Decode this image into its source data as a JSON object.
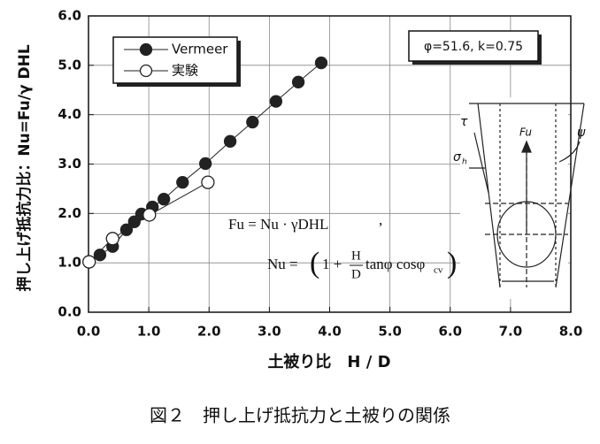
{
  "chart_data": {
    "type": "scatter",
    "caption": "図２　押し上げ抵抗力と土被りの関係",
    "x_label": "土被り比　H / D",
    "y_label": "押し上げ抵抗力比：Nu=Fu/γ DHL",
    "series": [
      {
        "name": "Vermeer",
        "color": "#222222",
        "marker": "filled",
        "x": [
          0.19,
          0.4,
          0.63,
          0.76,
          0.88,
          1.06,
          1.25,
          1.56,
          1.94,
          2.35,
          2.72,
          3.11,
          3.48,
          3.86
        ],
        "values": [
          1.16,
          1.33,
          1.67,
          1.83,
          1.99,
          2.13,
          2.29,
          2.63,
          3.01,
          3.46,
          3.85,
          4.27,
          4.66,
          5.05
        ]
      },
      {
        "name": "実験",
        "color": "#222222",
        "marker": "open",
        "x": [
          0.01,
          0.4,
          1.01,
          1.98
        ],
        "values": [
          1.02,
          1.49,
          1.97,
          2.63
        ]
      }
    ],
    "xlim": [
      0,
      8
    ],
    "ylim": [
      0,
      6
    ],
    "xticks": [
      {
        "value": 0,
        "label": "0.0"
      },
      {
        "value": 1,
        "label": "1.0"
      },
      {
        "value": 2,
        "label": "2.0"
      },
      {
        "value": 3,
        "label": "3.0"
      },
      {
        "value": 4,
        "label": "4.0"
      },
      {
        "value": 5,
        "label": "5.0"
      },
      {
        "value": 6,
        "label": "6.0"
      },
      {
        "value": 7,
        "label": "7.0"
      },
      {
        "value": 8,
        "label": "8.0"
      }
    ],
    "yticks": [
      {
        "value": 0,
        "label": "0.0"
      },
      {
        "value": 1,
        "label": "1.0"
      },
      {
        "value": 2,
        "label": "2.0"
      },
      {
        "value": 3,
        "label": "3.0"
      },
      {
        "value": 4,
        "label": "4.0"
      },
      {
        "value": 5,
        "label": "5.0"
      },
      {
        "value": 6,
        "label": "6.0"
      }
    ],
    "grid": true,
    "legend": "upper-left",
    "annotations": {
      "params": "φ=51.6, k=0.75",
      "formula_fu": "Fu = Nu · γDHL",
      "comma": ",",
      "nu_eq": "Nu =",
      "one_plus": "1 +",
      "h": "H",
      "d": "D",
      "trig": "tanφ cosφ",
      "cv": "cv"
    },
    "inset_labels": {
      "tau": "τ",
      "sigma": "σ",
      "sigma_sub": "h",
      "fu": "Fu",
      "psi": "ψ"
    }
  }
}
